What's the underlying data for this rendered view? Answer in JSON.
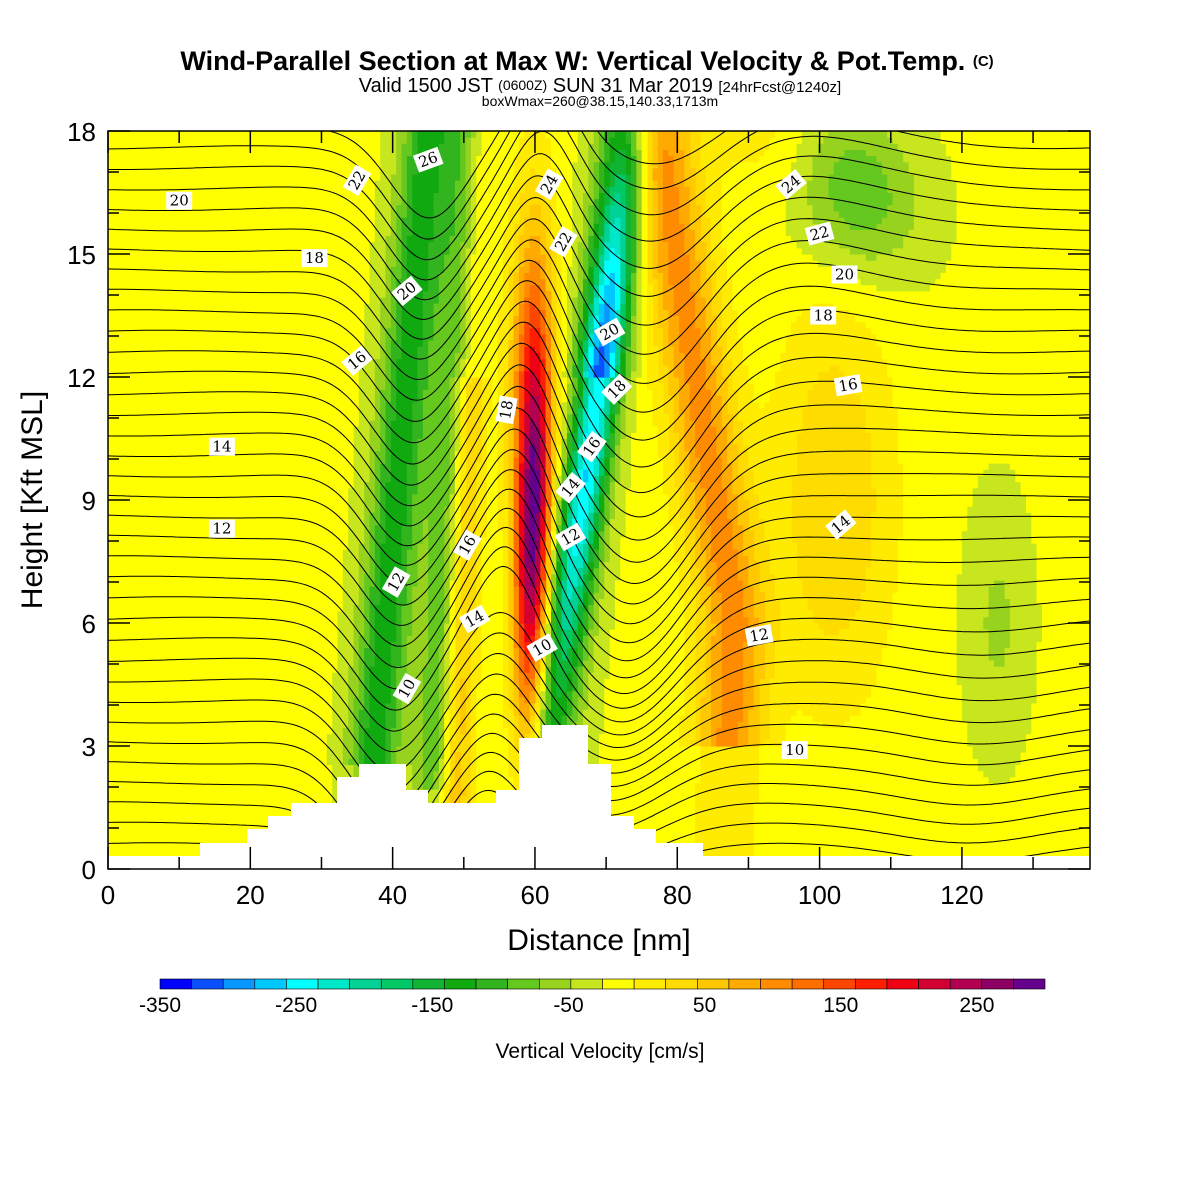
{
  "chart_data": {
    "type": "heatmap",
    "title": "Wind-Parallel Section at Max W: Vertical Velocity & Pot.Temp.",
    "title_mark": "(C)",
    "subtitle_main": "Valid 1500 JST",
    "subtitle_zulu": "(0600Z)",
    "subtitle_date": "SUN 31 Mar 2019",
    "subtitle_fcst": "[24hrFcst@1240z]",
    "subtitle2": "boxWmax=260@38.15,140.33,1713m",
    "xlabel": "Distance [nm]",
    "ylabel": "Height [Kft MSL]",
    "xlim": [
      0,
      138
    ],
    "ylim": [
      0,
      18
    ],
    "x_ticks": [
      0,
      20,
      40,
      60,
      80,
      100,
      120
    ],
    "y_ticks": [
      0,
      3,
      6,
      9,
      12,
      15,
      18
    ],
    "colorbar": {
      "label": "Vertical Velocity [cm/s]",
      "range": [
        -350,
        300
      ],
      "step": 25,
      "tick_labels": [
        -350,
        -250,
        -150,
        -50,
        50,
        150,
        250
      ],
      "colors": [
        "#0000ff",
        "#0a50ff",
        "#0a96ff",
        "#00c8ff",
        "#00ffff",
        "#00e6c8",
        "#00d296",
        "#00c864",
        "#10b432",
        "#10aa10",
        "#32b41e",
        "#64c81e",
        "#96d21e",
        "#c8e61e",
        "#ffff00",
        "#ffeb00",
        "#ffdc00",
        "#ffc800",
        "#ffaa00",
        "#ff8c00",
        "#ff6e00",
        "#ff4600",
        "#ff1e00",
        "#f00014",
        "#d20032",
        "#b40050",
        "#8c0064",
        "#64008c"
      ]
    },
    "contour_labels": [
      {
        "text": "20",
        "x": 10,
        "y": 16.3,
        "rot": 0
      },
      {
        "text": "22",
        "x": 35,
        "y": 16.8,
        "rot": -60
      },
      {
        "text": "26",
        "x": 45,
        "y": 17.3,
        "rot": -20
      },
      {
        "text": "24",
        "x": 62,
        "y": 16.7,
        "rot": -60
      },
      {
        "text": "22",
        "x": 64,
        "y": 15.3,
        "rot": -60
      },
      {
        "text": "24",
        "x": 96,
        "y": 16.7,
        "rot": -40
      },
      {
        "text": "22",
        "x": 100,
        "y": 15.5,
        "rot": -15
      },
      {
        "text": "20",
        "x": 103.5,
        "y": 14.5,
        "rot": 0
      },
      {
        "text": "18",
        "x": 29,
        "y": 14.9,
        "rot": 0
      },
      {
        "text": "20",
        "x": 42,
        "y": 14.1,
        "rot": -40
      },
      {
        "text": "20",
        "x": 70.5,
        "y": 13.1,
        "rot": -30
      },
      {
        "text": "18",
        "x": 100.5,
        "y": 13.5,
        "rot": 0
      },
      {
        "text": "16",
        "x": 35,
        "y": 12.4,
        "rot": -40
      },
      {
        "text": "18",
        "x": 56,
        "y": 11.2,
        "rot": -80
      },
      {
        "text": "18",
        "x": 71.5,
        "y": 11.7,
        "rot": -45
      },
      {
        "text": "16",
        "x": 104,
        "y": 11.8,
        "rot": -10
      },
      {
        "text": "16",
        "x": 68,
        "y": 10.3,
        "rot": -55
      },
      {
        "text": "14",
        "x": 16,
        "y": 10.3,
        "rot": 0
      },
      {
        "text": "14",
        "x": 65,
        "y": 9.3,
        "rot": -50
      },
      {
        "text": "16",
        "x": 50.5,
        "y": 7.9,
        "rot": -60
      },
      {
        "text": "12",
        "x": 65,
        "y": 8.1,
        "rot": -30
      },
      {
        "text": "14",
        "x": 103,
        "y": 8.4,
        "rot": -40
      },
      {
        "text": "12",
        "x": 16,
        "y": 8.3,
        "rot": 0
      },
      {
        "text": "12",
        "x": 40.5,
        "y": 7.0,
        "rot": -60
      },
      {
        "text": "14",
        "x": 51.5,
        "y": 6.1,
        "rot": -30
      },
      {
        "text": "10",
        "x": 61,
        "y": 5.4,
        "rot": -30
      },
      {
        "text": "12",
        "x": 91.5,
        "y": 5.7,
        "rot": -10
      },
      {
        "text": "10",
        "x": 42,
        "y": 4.4,
        "rot": -60
      },
      {
        "text": "10",
        "x": 96.5,
        "y": 2.9,
        "rot": 0
      }
    ]
  }
}
